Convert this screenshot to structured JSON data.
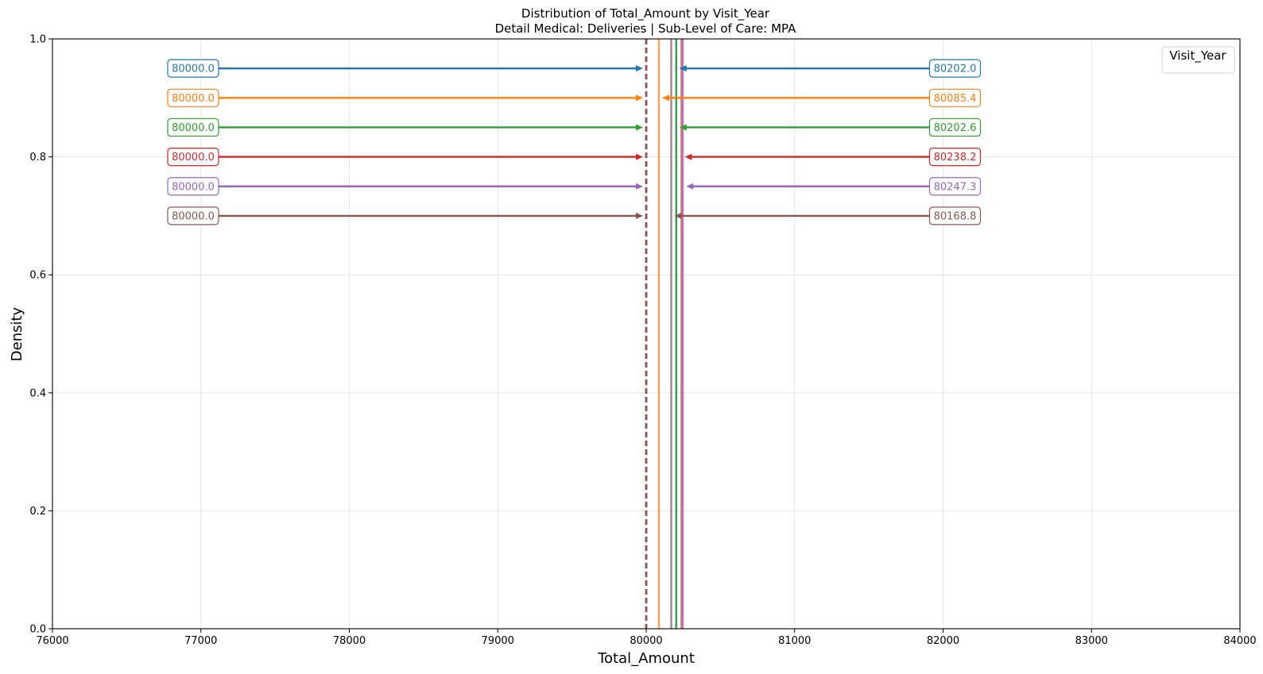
{
  "chart_data": {
    "type": "line",
    "title": "Distribution of Total_Amount by Visit_Year",
    "subtitle": "Detail Medical: Deliveries | Sub-Level of Care: MPA",
    "xlabel": "Total_Amount",
    "ylabel": "Density",
    "xlim": [
      76000,
      84000
    ],
    "ylim": [
      0,
      1
    ],
    "x_ticks": [
      76000,
      77000,
      78000,
      79000,
      80000,
      81000,
      82000,
      83000,
      84000
    ],
    "y_ticks": [
      0.0,
      0.2,
      0.4,
      0.6,
      0.8,
      1.0
    ],
    "x_tick_labels": [
      "76000",
      "77000",
      "78000",
      "79000",
      "80000",
      "81000",
      "82000",
      "83000",
      "84000"
    ],
    "y_tick_labels": [
      "0.0",
      "0.2",
      "0.4",
      "0.6",
      "0.8",
      "1.0"
    ],
    "grid": true,
    "legend": {
      "title": "Visit_Year",
      "placement": "top-right",
      "entries": []
    },
    "series": [
      {
        "color": "#1f77b4",
        "median": 80000.0,
        "mean": 80202.0,
        "median_label": "80000.0",
        "mean_label": "80202.0",
        "y": 0.95
      },
      {
        "color": "#ff7f0e",
        "median": 80000.0,
        "mean": 80085.4,
        "median_label": "80000.0",
        "mean_label": "80085.4",
        "y": 0.9
      },
      {
        "color": "#2ca02c",
        "median": 80000.0,
        "mean": 80202.6,
        "median_label": "80000.0",
        "mean_label": "80202.6",
        "y": 0.85
      },
      {
        "color": "#d62728",
        "median": 80000.0,
        "mean": 80238.2,
        "median_label": "80000.0",
        "mean_label": "80238.2",
        "y": 0.8
      },
      {
        "color": "#9467bd",
        "median": 80000.0,
        "mean": 80247.3,
        "median_label": "80000.0",
        "mean_label": "80247.3",
        "y": 0.75
      },
      {
        "color": "#8c564b",
        "median": 80000.0,
        "mean": 80168.8,
        "median_label": "80000.0",
        "mean_label": "80168.8",
        "y": 0.7
      }
    ]
  }
}
